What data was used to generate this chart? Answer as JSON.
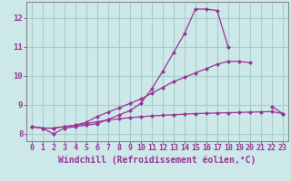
{
  "x": [
    0,
    1,
    2,
    3,
    4,
    5,
    6,
    7,
    8,
    9,
    10,
    11,
    12,
    13,
    14,
    15,
    16,
    17,
    18,
    19,
    20,
    21,
    22,
    23
  ],
  "line1": [
    8.25,
    8.2,
    8.0,
    8.2,
    8.25,
    8.3,
    8.35,
    8.5,
    8.65,
    8.8,
    9.05,
    9.55,
    10.15,
    10.8,
    11.45,
    12.3,
    12.3,
    12.25,
    11.0,
    null,
    null,
    null,
    null,
    null
  ],
  "line2": [
    8.25,
    8.2,
    8.2,
    8.25,
    8.3,
    8.4,
    8.6,
    8.75,
    8.9,
    9.05,
    9.2,
    9.4,
    9.6,
    9.8,
    9.95,
    10.1,
    10.25,
    10.4,
    10.5,
    10.5,
    10.45,
    null,
    8.95,
    8.7
  ],
  "line3": [
    8.25,
    8.2,
    8.2,
    8.25,
    8.3,
    8.35,
    8.42,
    8.48,
    8.52,
    8.56,
    8.59,
    8.62,
    8.64,
    8.66,
    8.68,
    8.7,
    8.71,
    8.72,
    8.73,
    8.74,
    8.75,
    8.76,
    8.77,
    8.7
  ],
  "line_color": "#993399",
  "bg_color": "#cce8e8",
  "grid_color": "#aacccc",
  "xlabel": "Windchill (Refroidissement éolien,°C)",
  "xlim": [
    -0.5,
    23.5
  ],
  "ylim": [
    7.75,
    12.55
  ],
  "xticks": [
    0,
    1,
    2,
    3,
    4,
    5,
    6,
    7,
    8,
    9,
    10,
    11,
    12,
    13,
    14,
    15,
    16,
    17,
    18,
    19,
    20,
    21,
    22,
    23
  ],
  "yticks": [
    8,
    9,
    10,
    11,
    12
  ],
  "tick_fontsize": 6.0,
  "xlabel_fontsize": 7.0,
  "marker": "D",
  "markersize": 2.0,
  "linewidth": 0.9
}
